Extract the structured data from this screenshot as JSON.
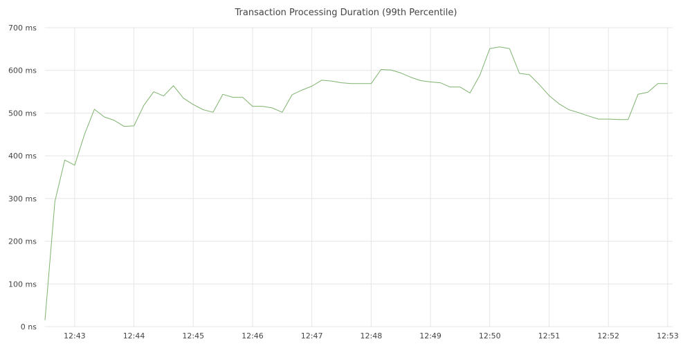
{
  "chart_data": {
    "type": "line",
    "title": "Transaction Processing Duration (99th Percentile)",
    "xlabel": "",
    "ylabel": "",
    "ylim": [
      0,
      700
    ],
    "yticks": [
      {
        "value": 0,
        "label": "0 ns"
      },
      {
        "value": 100,
        "label": "100 ms"
      },
      {
        "value": 200,
        "label": "200 ms"
      },
      {
        "value": 300,
        "label": "300 ms"
      },
      {
        "value": 400,
        "label": "400 ms"
      },
      {
        "value": 500,
        "label": "500 ms"
      },
      {
        "value": 600,
        "label": "600 ms"
      },
      {
        "value": 700,
        "label": "700 ms"
      }
    ],
    "xlim": [
      "12:42:30",
      "12:53:05"
    ],
    "xticks": [
      "12:43",
      "12:44",
      "12:45",
      "12:46",
      "12:47",
      "12:48",
      "12:49",
      "12:50",
      "12:51",
      "12:52",
      "12:53"
    ],
    "grid": true,
    "legend": "none",
    "line_color": "#7eb26d",
    "series": [
      {
        "x": [
          "12:42:30",
          "12:42:40",
          "12:42:50",
          "12:43:00",
          "12:43:10",
          "12:43:20",
          "12:43:30",
          "12:43:40",
          "12:43:50",
          "12:44:00",
          "12:44:10",
          "12:44:20",
          "12:44:30",
          "12:44:40",
          "12:44:50",
          "12:45:00",
          "12:45:10",
          "12:45:20",
          "12:45:30",
          "12:45:40",
          "12:45:50",
          "12:46:00",
          "12:46:10",
          "12:46:20",
          "12:46:30",
          "12:46:40",
          "12:46:50",
          "12:47:00",
          "12:47:10",
          "12:47:20",
          "12:47:30",
          "12:47:40",
          "12:47:50",
          "12:48:00",
          "12:48:10",
          "12:48:20",
          "12:48:30",
          "12:48:40",
          "12:48:50",
          "12:49:00",
          "12:49:10",
          "12:49:20",
          "12:49:30",
          "12:49:40",
          "12:49:50",
          "12:50:00",
          "12:50:10",
          "12:50:20",
          "12:50:30",
          "12:50:40",
          "12:50:50",
          "12:51:00",
          "12:51:10",
          "12:51:20",
          "12:51:30",
          "12:51:40",
          "12:51:50",
          "12:52:00",
          "12:52:10",
          "12:52:20",
          "12:52:30",
          "12:52:40",
          "12:52:50",
          "12:53:00"
        ],
        "values": [
          15,
          293,
          390,
          378,
          450,
          509,
          491,
          483,
          469,
          470,
          518,
          550,
          540,
          564,
          535,
          520,
          508,
          502,
          544,
          537,
          537,
          516,
          516,
          512,
          502,
          543,
          554,
          563,
          577,
          575,
          571,
          569,
          569,
          569,
          602,
          601,
          594,
          584,
          576,
          573,
          571,
          561,
          561,
          547,
          589,
          651,
          655,
          651,
          593,
          590,
          567,
          541,
          522,
          508,
          501,
          493,
          486,
          486,
          485,
          485,
          544,
          549,
          569,
          569
        ]
      }
    ]
  }
}
